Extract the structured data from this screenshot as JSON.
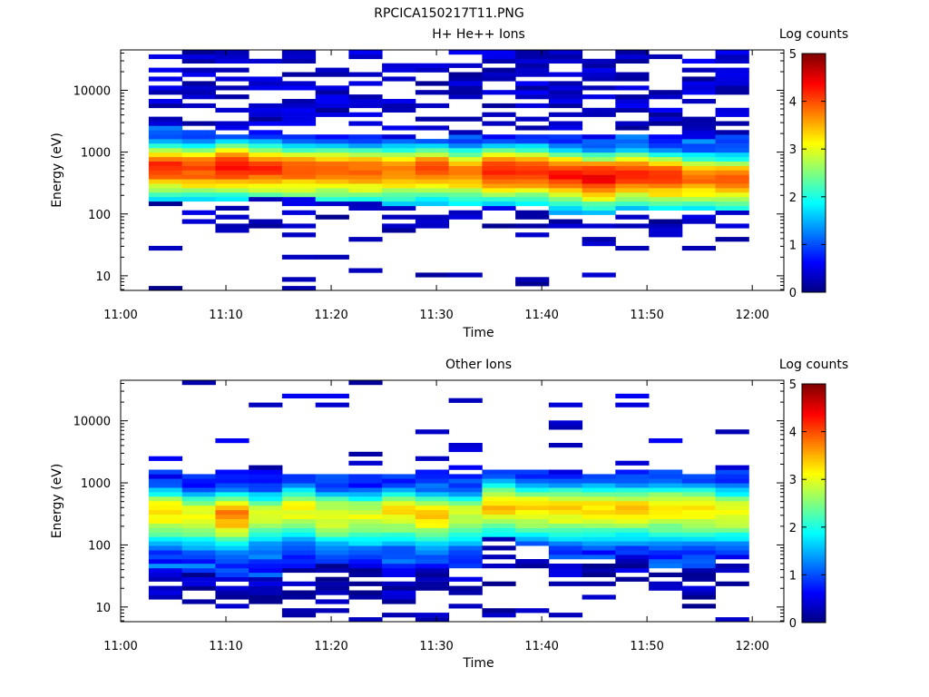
{
  "figure_title": "RPCICA150217T11.PNG",
  "chart_data": [
    {
      "type": "heatmap",
      "title": "H+ He++ Ions",
      "xlabel": "Time",
      "ylabel": "Energy (eV)",
      "x_scale": "time",
      "y_scale": "log",
      "xlim": [
        "11:00",
        "12:03"
      ],
      "ylim": [
        5.8,
        45000
      ],
      "x_ticks": [
        "11:00",
        "11:10",
        "11:20",
        "11:30",
        "11:40",
        "11:50",
        "12:00"
      ],
      "y_ticks": [
        "10",
        "100",
        "1000",
        "10000"
      ],
      "colorbar": {
        "label": "Log counts",
        "min": 0,
        "max": 5,
        "ticks": [
          "0",
          "1",
          "2",
          "3",
          "4",
          "5"
        ],
        "colormap": "jet"
      },
      "time_bins": [
        "11:02:40",
        "11:05:50",
        "11:09:00",
        "11:12:10",
        "11:15:20",
        "11:18:30",
        "11:21:40",
        "11:24:50",
        "11:28:00",
        "11:31:10",
        "11:34:20",
        "11:37:30",
        "11:40:40",
        "11:43:50",
        "11:47:00",
        "11:50:10",
        "11:53:20",
        "11:56:30"
      ],
      "bin_width_minutes": 3.17,
      "profile": {
        "core_log_energy": [
          2.78,
          2.76,
          2.8,
          2.76,
          2.74,
          2.74,
          2.72,
          2.72,
          2.74,
          2.7,
          2.72,
          2.72,
          2.66,
          2.62,
          2.66,
          2.62,
          2.6,
          2.58
        ],
        "peak_log_counts": [
          4.1,
          4.05,
          4.3,
          4.15,
          3.95,
          4.0,
          3.9,
          3.85,
          4.0,
          3.8,
          4.3,
          4.2,
          4.35,
          4.4,
          4.2,
          4.1,
          3.8,
          3.9
        ],
        "continuum_log_energy": [
          2.18,
          2.2,
          2.2,
          2.26,
          2.26,
          2.24,
          2.24,
          2.1,
          2.14,
          2.12,
          2.16,
          2.16,
          2.02,
          2.0,
          2.04,
          2.08,
          2.06,
          2.06
        ],
        "upper_log_energy": [
          3.4,
          3.36,
          3.3,
          3.34,
          3.3,
          3.3,
          3.3,
          3.2,
          3.24,
          3.3,
          3.3,
          3.3,
          3.3,
          3.3,
          3.3,
          3.3,
          3.3,
          3.3
        ]
      }
    },
    {
      "type": "heatmap",
      "title": "Other Ions",
      "xlabel": "Time",
      "ylabel": "Energy (eV)",
      "x_scale": "time",
      "y_scale": "log",
      "xlim": [
        "11:00",
        "12:03"
      ],
      "ylim": [
        5.8,
        45000
      ],
      "x_ticks": [
        "11:00",
        "11:10",
        "11:20",
        "11:30",
        "11:40",
        "11:50",
        "12:00"
      ],
      "y_ticks": [
        "10",
        "100",
        "1000",
        "10000"
      ],
      "colorbar": {
        "label": "Log counts",
        "min": 0,
        "max": 5,
        "ticks": [
          "0",
          "1",
          "2",
          "3",
          "4",
          "5"
        ],
        "colormap": "jet"
      },
      "time_bins": [
        "11:02:40",
        "11:05:50",
        "11:09:00",
        "11:12:10",
        "11:15:20",
        "11:18:30",
        "11:21:40",
        "11:24:50",
        "11:28:00",
        "11:31:10",
        "11:34:20",
        "11:37:30",
        "11:40:40",
        "11:43:50",
        "11:47:00",
        "11:50:10",
        "11:53:20",
        "11:56:30"
      ],
      "bin_width_minutes": 3.17,
      "profile": {
        "core_log_energy": [
          2.55,
          2.5,
          2.5,
          2.5,
          2.6,
          2.5,
          2.5,
          2.55,
          2.5,
          2.5,
          2.65,
          2.62,
          2.6,
          2.6,
          2.6,
          2.6,
          2.6,
          2.55
        ],
        "peak_log_counts": [
          3.3,
          3.1,
          3.7,
          2.9,
          3.1,
          3.1,
          3.0,
          3.2,
          3.3,
          2.9,
          3.4,
          3.3,
          3.3,
          3.3,
          3.3,
          3.3,
          3.3,
          3.1
        ],
        "continuum_log_energy": [
          1.6,
          1.55,
          1.5,
          1.5,
          1.6,
          1.7,
          1.7,
          1.55,
          1.6,
          1.6,
          2.1,
          2.0,
          1.8,
          1.8,
          1.85,
          1.65,
          1.65,
          1.75
        ],
        "upper_log_energy": [
          3.22,
          3.14,
          3.24,
          3.2,
          3.12,
          3.12,
          3.16,
          3.14,
          3.2,
          3.14,
          3.24,
          3.18,
          3.22,
          3.16,
          3.22,
          3.2,
          3.12,
          3.2
        ]
      }
    }
  ]
}
